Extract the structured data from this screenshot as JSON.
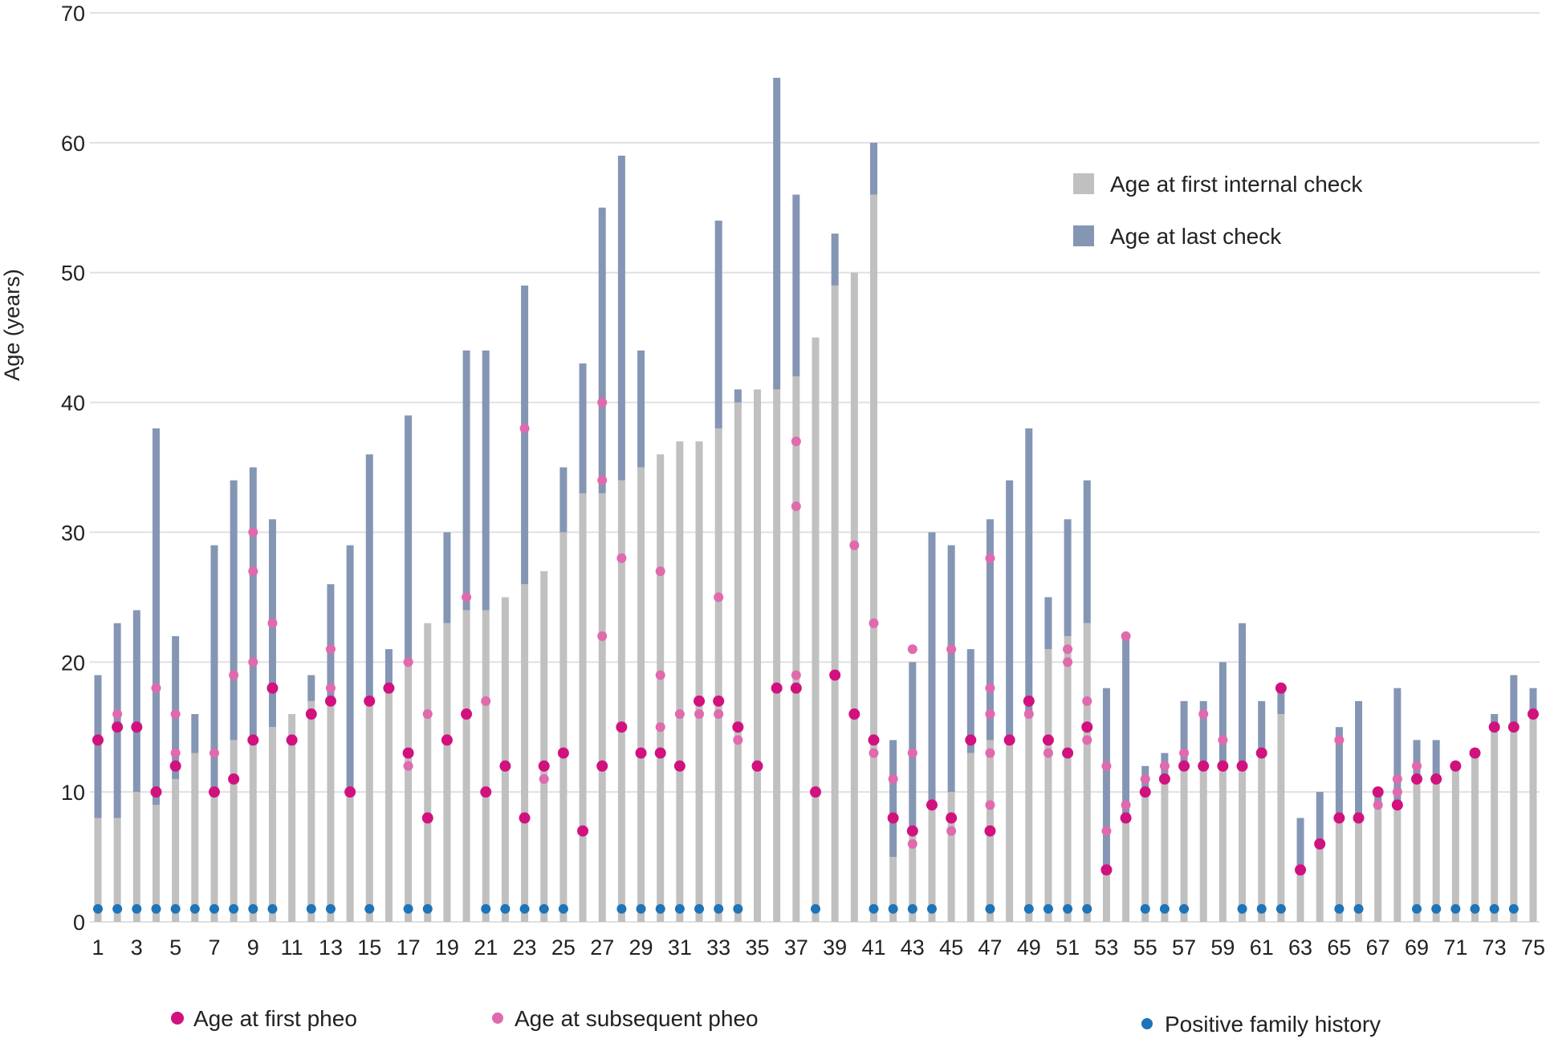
{
  "chart_data": {
    "type": "bar",
    "title": "",
    "xlabel": "",
    "ylabel": "Age (years)",
    "ylim": [
      0,
      70
    ],
    "yticks": [
      0,
      10,
      20,
      30,
      40,
      50,
      60,
      70
    ],
    "grid": true,
    "colors": {
      "first_check": "#c0c0c0",
      "last_check": "#8496b4",
      "first_pheo": "#d1127e",
      "subsequent_pheo": "#e06aae",
      "family_history": "#1f73b7",
      "grid": "#e0e0e0"
    },
    "legend": {
      "placement": "top-right",
      "entries": [
        "Age at first internal check",
        "Age at last check"
      ]
    },
    "bottom_legend": {
      "placement": "bottom",
      "entries": [
        "Age at first pheo",
        "Age at subsequent pheo",
        "Positive family history"
      ]
    },
    "x_tick_labels": [
      "1",
      "3",
      "5",
      "7",
      "9",
      "11",
      "13",
      "15",
      "17",
      "19",
      "21",
      "23",
      "25",
      "27",
      "29",
      "31",
      "33",
      "35",
      "37",
      "39",
      "41",
      "43",
      "45",
      "47",
      "49",
      "51",
      "53",
      "55",
      "57",
      "59",
      "61",
      "63",
      "65",
      "67",
      "69",
      "71",
      "73",
      "75"
    ],
    "patients": [
      {
        "id": 1,
        "first_check": 8,
        "last_check": 19,
        "first_pheo": 14,
        "subsequent": [],
        "family": true
      },
      {
        "id": 2,
        "first_check": 8,
        "last_check": 23,
        "first_pheo": 15,
        "subsequent": [
          16
        ],
        "family": true
      },
      {
        "id": 3,
        "first_check": 10,
        "last_check": 24,
        "first_pheo": 15,
        "subsequent": [],
        "family": true
      },
      {
        "id": 4,
        "first_check": 9,
        "last_check": 38,
        "first_pheo": 10,
        "subsequent": [
          18
        ],
        "family": true
      },
      {
        "id": 5,
        "first_check": 11,
        "last_check": 22,
        "first_pheo": 12,
        "subsequent": [
          13,
          16
        ],
        "family": true
      },
      {
        "id": 6,
        "first_check": 13,
        "last_check": 16,
        "first_pheo": null,
        "subsequent": [],
        "family": true
      },
      {
        "id": 7,
        "first_check": 10,
        "last_check": 29,
        "first_pheo": 10,
        "subsequent": [
          13
        ],
        "family": true
      },
      {
        "id": 8,
        "first_check": 14,
        "last_check": 34,
        "first_pheo": 11,
        "subsequent": [
          19
        ],
        "family": true
      },
      {
        "id": 9,
        "first_check": 14,
        "last_check": 35,
        "first_pheo": 14,
        "subsequent": [
          20,
          27,
          30
        ],
        "family": true
      },
      {
        "id": 10,
        "first_check": 15,
        "last_check": 31,
        "first_pheo": 18,
        "subsequent": [
          23
        ],
        "family": true
      },
      {
        "id": 11,
        "first_check": 16,
        "last_check": 16,
        "first_pheo": 14,
        "subsequent": [],
        "family": false
      },
      {
        "id": 12,
        "first_check": 17,
        "last_check": 19,
        "first_pheo": 16,
        "subsequent": [],
        "family": true
      },
      {
        "id": 13,
        "first_check": 17,
        "last_check": 26,
        "first_pheo": 17,
        "subsequent": [
          18,
          21
        ],
        "family": true
      },
      {
        "id": 14,
        "first_check": 10,
        "last_check": 29,
        "first_pheo": 10,
        "subsequent": [],
        "family": false
      },
      {
        "id": 15,
        "first_check": 17,
        "last_check": 36,
        "first_pheo": 17,
        "subsequent": [],
        "family": true
      },
      {
        "id": 16,
        "first_check": 18,
        "last_check": 21,
        "first_pheo": 18,
        "subsequent": [],
        "family": false
      },
      {
        "id": 17,
        "first_check": 20,
        "last_check": 39,
        "first_pheo": 13,
        "subsequent": [
          12,
          20
        ],
        "family": true
      },
      {
        "id": 18,
        "first_check": 23,
        "last_check": 23,
        "first_pheo": 8,
        "subsequent": [
          16
        ],
        "family": true
      },
      {
        "id": 19,
        "first_check": 23,
        "last_check": 30,
        "first_pheo": 14,
        "subsequent": [],
        "family": false
      },
      {
        "id": 20,
        "first_check": 24,
        "last_check": 44,
        "first_pheo": 16,
        "subsequent": [
          25
        ],
        "family": false
      },
      {
        "id": 21,
        "first_check": 24,
        "last_check": 44,
        "first_pheo": 10,
        "subsequent": [
          17
        ],
        "family": true
      },
      {
        "id": 22,
        "first_check": 25,
        "last_check": 25,
        "first_pheo": 12,
        "subsequent": [],
        "family": true
      },
      {
        "id": 23,
        "first_check": 26,
        "last_check": 49,
        "first_pheo": 8,
        "subsequent": [
          38
        ],
        "family": true
      },
      {
        "id": 24,
        "first_check": 27,
        "last_check": 27,
        "first_pheo": 12,
        "subsequent": [
          11
        ],
        "family": true
      },
      {
        "id": 25,
        "first_check": 30,
        "last_check": 35,
        "first_pheo": 13,
        "subsequent": [],
        "family": true
      },
      {
        "id": 26,
        "first_check": 33,
        "last_check": 43,
        "first_pheo": 7,
        "subsequent": [],
        "family": false
      },
      {
        "id": 27,
        "first_check": 33,
        "last_check": 55,
        "first_pheo": 12,
        "subsequent": [
          22,
          34,
          40
        ],
        "family": false
      },
      {
        "id": 28,
        "first_check": 34,
        "last_check": 59,
        "first_pheo": 15,
        "subsequent": [
          28
        ],
        "family": true
      },
      {
        "id": 29,
        "first_check": 35,
        "last_check": 44,
        "first_pheo": 13,
        "subsequent": [],
        "family": true
      },
      {
        "id": 30,
        "first_check": 36,
        "last_check": 36,
        "first_pheo": 13,
        "subsequent": [
          15,
          19,
          27
        ],
        "family": true
      },
      {
        "id": 31,
        "first_check": 37,
        "last_check": 37,
        "first_pheo": 12,
        "subsequent": [
          16
        ],
        "family": true
      },
      {
        "id": 32,
        "first_check": 37,
        "last_check": 37,
        "first_pheo": 17,
        "subsequent": [
          16
        ],
        "family": true
      },
      {
        "id": 33,
        "first_check": 38,
        "last_check": 54,
        "first_pheo": 17,
        "subsequent": [
          16,
          25
        ],
        "family": true
      },
      {
        "id": 34,
        "first_check": 40,
        "last_check": 41,
        "first_pheo": 15,
        "subsequent": [
          14
        ],
        "family": true
      },
      {
        "id": 35,
        "first_check": 41,
        "last_check": 41,
        "first_pheo": 12,
        "subsequent": [],
        "family": false
      },
      {
        "id": 36,
        "first_check": 41,
        "last_check": 65,
        "first_pheo": 18,
        "subsequent": [],
        "family": false
      },
      {
        "id": 37,
        "first_check": 42,
        "last_check": 56,
        "first_pheo": 18,
        "subsequent": [
          19,
          32,
          37
        ],
        "family": false
      },
      {
        "id": 38,
        "first_check": 45,
        "last_check": 45,
        "first_pheo": 10,
        "subsequent": [],
        "family": true
      },
      {
        "id": 39,
        "first_check": 49,
        "last_check": 53,
        "first_pheo": 19,
        "subsequent": [],
        "family": false
      },
      {
        "id": 40,
        "first_check": 50,
        "last_check": 50,
        "first_pheo": 16,
        "subsequent": [
          29
        ],
        "family": false
      },
      {
        "id": 41,
        "first_check": 56,
        "last_check": 60,
        "first_pheo": 14,
        "subsequent": [
          13,
          23
        ],
        "family": true
      },
      {
        "id": 42,
        "first_check": 5,
        "last_check": 14,
        "first_pheo": 8,
        "subsequent": [
          11
        ],
        "family": true
      },
      {
        "id": 43,
        "first_check": 7,
        "last_check": 20,
        "first_pheo": 7,
        "subsequent": [
          6,
          13,
          21
        ],
        "family": true
      },
      {
        "id": 44,
        "first_check": 9,
        "last_check": 30,
        "first_pheo": 9,
        "subsequent": [],
        "family": true
      },
      {
        "id": 45,
        "first_check": 10,
        "last_check": 29,
        "first_pheo": 8,
        "subsequent": [
          7,
          21
        ],
        "family": false
      },
      {
        "id": 46,
        "first_check": 13,
        "last_check": 21,
        "first_pheo": 14,
        "subsequent": [],
        "family": false
      },
      {
        "id": 47,
        "first_check": 14,
        "last_check": 31,
        "first_pheo": 7,
        "subsequent": [
          9,
          13,
          16,
          18,
          28
        ],
        "family": true
      },
      {
        "id": 48,
        "first_check": 14,
        "last_check": 34,
        "first_pheo": 14,
        "subsequent": [],
        "family": false
      },
      {
        "id": 49,
        "first_check": 16,
        "last_check": 38,
        "first_pheo": 17,
        "subsequent": [
          16
        ],
        "family": true
      },
      {
        "id": 50,
        "first_check": 21,
        "last_check": 25,
        "first_pheo": 14,
        "subsequent": [
          13
        ],
        "family": true
      },
      {
        "id": 51,
        "first_check": 22,
        "last_check": 31,
        "first_pheo": 13,
        "subsequent": [
          20,
          21
        ],
        "family": true
      },
      {
        "id": 52,
        "first_check": 23,
        "last_check": 34,
        "first_pheo": 15,
        "subsequent": [
          14,
          17
        ],
        "family": true
      },
      {
        "id": 53,
        "first_check": 4,
        "last_check": 18,
        "first_pheo": 4,
        "subsequent": [
          7,
          12
        ],
        "family": false
      },
      {
        "id": 54,
        "first_check": 8,
        "last_check": 22,
        "first_pheo": 8,
        "subsequent": [
          9,
          22
        ],
        "family": false
      },
      {
        "id": 55,
        "first_check": 10,
        "last_check": 12,
        "first_pheo": 10,
        "subsequent": [
          11
        ],
        "family": true
      },
      {
        "id": 56,
        "first_check": 11,
        "last_check": 13,
        "first_pheo": 11,
        "subsequent": [
          12
        ],
        "family": true
      },
      {
        "id": 57,
        "first_check": 12,
        "last_check": 17,
        "first_pheo": 12,
        "subsequent": [
          13
        ],
        "family": true
      },
      {
        "id": 58,
        "first_check": 12,
        "last_check": 17,
        "first_pheo": 12,
        "subsequent": [
          16
        ],
        "family": false
      },
      {
        "id": 59,
        "first_check": 12,
        "last_check": 20,
        "first_pheo": 12,
        "subsequent": [
          14
        ],
        "family": false
      },
      {
        "id": 60,
        "first_check": 12,
        "last_check": 23,
        "first_pheo": 12,
        "subsequent": [],
        "family": true
      },
      {
        "id": 61,
        "first_check": 13,
        "last_check": 17,
        "first_pheo": 13,
        "subsequent": [],
        "family": true
      },
      {
        "id": 62,
        "first_check": 16,
        "last_check": 18,
        "first_pheo": 18,
        "subsequent": [],
        "family": true
      },
      {
        "id": 63,
        "first_check": 4,
        "last_check": 8,
        "first_pheo": 4,
        "subsequent": [],
        "family": false
      },
      {
        "id": 64,
        "first_check": 6,
        "last_check": 10,
        "first_pheo": 6,
        "subsequent": [],
        "family": false
      },
      {
        "id": 65,
        "first_check": 8,
        "last_check": 15,
        "first_pheo": 8,
        "subsequent": [
          14
        ],
        "family": true
      },
      {
        "id": 66,
        "first_check": 8,
        "last_check": 17,
        "first_pheo": 8,
        "subsequent": [],
        "family": true
      },
      {
        "id": 67,
        "first_check": 9,
        "last_check": 10,
        "first_pheo": 10,
        "subsequent": [
          9
        ],
        "family": false
      },
      {
        "id": 68,
        "first_check": 9,
        "last_check": 18,
        "first_pheo": 9,
        "subsequent": [
          10,
          11
        ],
        "family": false
      },
      {
        "id": 69,
        "first_check": 11,
        "last_check": 14,
        "first_pheo": 11,
        "subsequent": [
          12
        ],
        "family": true
      },
      {
        "id": 70,
        "first_check": 11,
        "last_check": 14,
        "first_pheo": 11,
        "subsequent": [],
        "family": true
      },
      {
        "id": 71,
        "first_check": 12,
        "last_check": 12,
        "first_pheo": 12,
        "subsequent": [],
        "family": true
      },
      {
        "id": 72,
        "first_check": 13,
        "last_check": 13,
        "first_pheo": 13,
        "subsequent": [],
        "family": true
      },
      {
        "id": 73,
        "first_check": 15,
        "last_check": 16,
        "first_pheo": 15,
        "subsequent": [],
        "family": true
      },
      {
        "id": 74,
        "first_check": 15,
        "last_check": 19,
        "first_pheo": 15,
        "subsequent": [],
        "family": true
      },
      {
        "id": 75,
        "first_check": 16,
        "last_check": 18,
        "first_pheo": 16,
        "subsequent": [],
        "family": false
      }
    ]
  }
}
